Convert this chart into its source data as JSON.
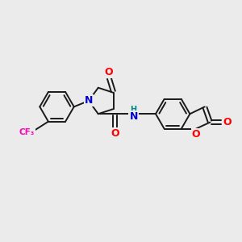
{
  "background_color": "#ebebeb",
  "figsize": [
    3.0,
    3.0
  ],
  "dpi": 100,
  "colors": {
    "N": "#0000cc",
    "O": "#ff0000",
    "F": "#ff00bb",
    "H_label": "#008888",
    "bond": "#1a1a1a"
  },
  "lw": 1.4
}
